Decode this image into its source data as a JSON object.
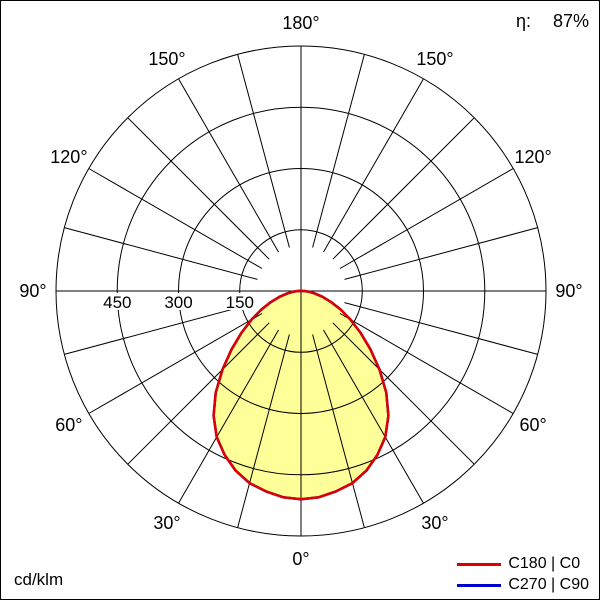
{
  "header": {
    "eta_label": "η:",
    "eta_value": "87%"
  },
  "footer": {
    "units_label": "cd/klm"
  },
  "chart_data": {
    "type": "polar",
    "subtype": "luminous-intensity-distribution",
    "title": "",
    "units": "cd/klm",
    "efficiency_label": "η:",
    "efficiency_value": "87%",
    "radial_ticks": [
      150,
      300,
      450
    ],
    "radial_max": 600,
    "angle_label_step": 30,
    "angle_labels": [
      "0°",
      "30°",
      "60°",
      "90°",
      "120°",
      "150°",
      "180°"
    ],
    "spoke_step_deg": 15,
    "grid_color": "#000000",
    "fill_color": "#ffff99",
    "legend_position": "bottom-right",
    "series": [
      {
        "name": "C180 | C0",
        "color": "#dd0000",
        "fill": "#ffff99",
        "gamma_deg": [
          0,
          5,
          10,
          15,
          20,
          25,
          30,
          35,
          40,
          45,
          50,
          55,
          60,
          65,
          70,
          75,
          80,
          85,
          90
        ],
        "intensity_cd_per_klm": [
          510,
          507,
          498,
          487,
          468,
          443,
          413,
          373,
          325,
          272,
          222,
          178,
          140,
          107,
          78,
          54,
          33,
          18,
          8
        ]
      },
      {
        "name": "C270 | C90",
        "color": "#0000cc",
        "fill": "none",
        "gamma_deg": [
          0,
          5,
          10,
          15,
          20,
          25,
          30,
          35,
          40,
          45,
          50,
          55,
          60,
          65,
          70,
          75,
          80,
          85,
          90
        ],
        "intensity_cd_per_klm": [
          510,
          507,
          498,
          487,
          468,
          443,
          413,
          373,
          325,
          272,
          222,
          178,
          140,
          107,
          78,
          54,
          33,
          18,
          8
        ]
      }
    ]
  }
}
